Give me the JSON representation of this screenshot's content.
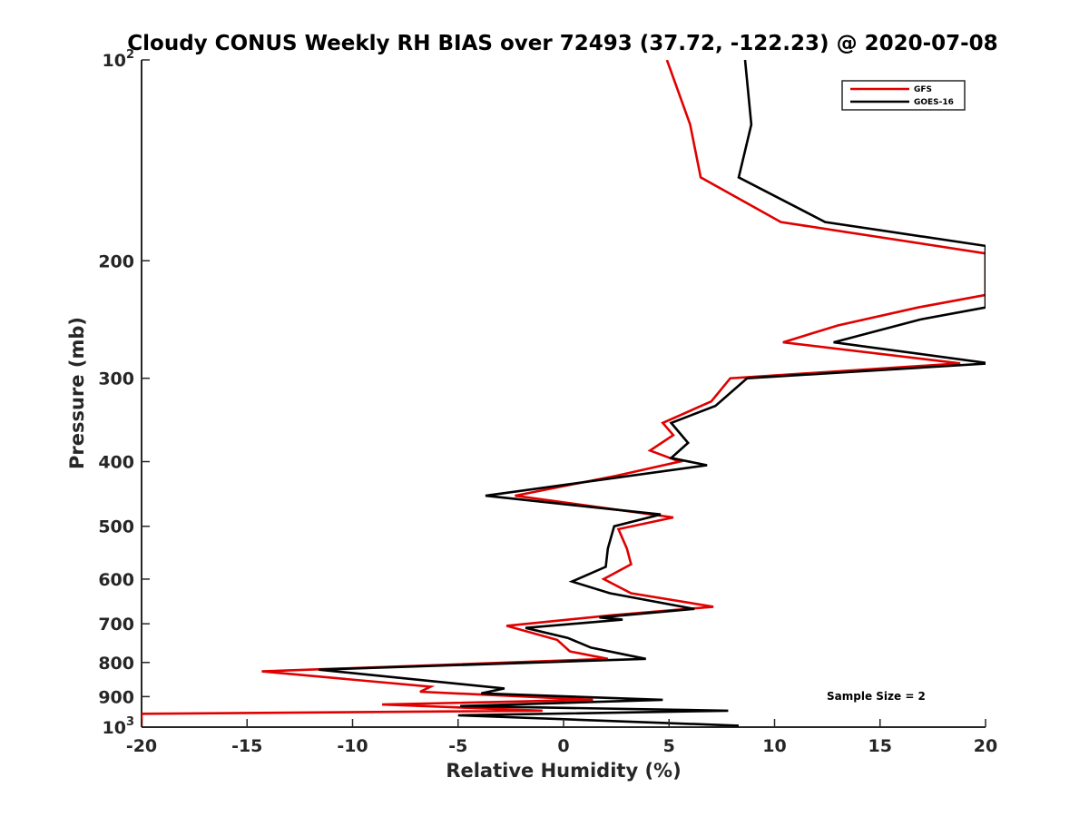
{
  "chart_data": {
    "type": "line",
    "title": "Cloudy CONUS Weekly RH BIAS over 72493 (37.72, -122.23) @ 2020-07-08",
    "xlabel": "Relative Humidity (%)",
    "ylabel": "Pressure (mb)",
    "xlim": [
      -20,
      20
    ],
    "ylim": [
      100,
      1000
    ],
    "yscale": "log",
    "y_reversed": true,
    "grid": false,
    "legend_position": "top-right",
    "x_ticks": [
      "-20",
      "-15",
      "-10",
      "-5",
      "0",
      "5",
      "10",
      "15",
      "20"
    ],
    "y_ticks": [
      {
        "value": 100,
        "base": "10",
        "exp": "2"
      },
      {
        "value": 200,
        "label": "200"
      },
      {
        "value": 300,
        "label": "300"
      },
      {
        "value": 400,
        "label": "400"
      },
      {
        "value": 500,
        "label": "500"
      },
      {
        "value": 600,
        "label": "600"
      },
      {
        "value": 700,
        "label": "700"
      },
      {
        "value": 800,
        "label": "800"
      },
      {
        "value": 900,
        "label": "900"
      },
      {
        "value": 1000,
        "base": "10",
        "exp": "3"
      }
    ],
    "annotation": "Sample Size = 2",
    "series": [
      {
        "name": "GFS",
        "color": "#e00000",
        "points": [
          [
            4.9,
            100
          ],
          [
            6.0,
            125
          ],
          [
            6.5,
            150
          ],
          [
            10.3,
            175
          ],
          [
            20.0,
            195
          ],
          [
            20.0,
            225
          ],
          [
            16.8,
            235
          ],
          [
            13.0,
            250
          ],
          [
            10.4,
            265
          ],
          [
            18.8,
            285
          ],
          [
            7.9,
            300
          ],
          [
            7.0,
            325
          ],
          [
            4.7,
            350
          ],
          [
            5.2,
            365
          ],
          [
            4.1,
            385
          ],
          [
            5.5,
            400
          ],
          [
            2.5,
            420
          ],
          [
            -2.3,
            450
          ],
          [
            5.2,
            485
          ],
          [
            2.6,
            505
          ],
          [
            3.0,
            540
          ],
          [
            3.2,
            570
          ],
          [
            1.9,
            600
          ],
          [
            3.2,
            630
          ],
          [
            7.1,
            660
          ],
          [
            2.2,
            680
          ],
          [
            -2.7,
            705
          ],
          [
            -0.3,
            740
          ],
          [
            0.3,
            770
          ],
          [
            2.1,
            790
          ],
          [
            -14.3,
            825
          ],
          [
            -6.3,
            870
          ],
          [
            -6.8,
            885
          ],
          [
            1.4,
            910
          ],
          [
            -8.6,
            925
          ],
          [
            -1.0,
            945
          ],
          [
            -20.0,
            955
          ],
          [
            -20.0,
            1000
          ]
        ]
      },
      {
        "name": "GOES-16",
        "color": "#000000",
        "points": [
          [
            8.6,
            100
          ],
          [
            8.9,
            125
          ],
          [
            8.3,
            150
          ],
          [
            12.4,
            175
          ],
          [
            20.0,
            190
          ],
          [
            20.0,
            235
          ],
          [
            16.9,
            245
          ],
          [
            12.8,
            265
          ],
          [
            20.2,
            285
          ],
          [
            8.7,
            300
          ],
          [
            7.2,
            330
          ],
          [
            5.1,
            350
          ],
          [
            5.9,
            375
          ],
          [
            5.1,
            395
          ],
          [
            6.8,
            405
          ],
          [
            -3.7,
            450
          ],
          [
            4.6,
            480
          ],
          [
            2.4,
            500
          ],
          [
            2.1,
            540
          ],
          [
            2.0,
            575
          ],
          [
            0.4,
            605
          ],
          [
            2.2,
            630
          ],
          [
            6.2,
            665
          ],
          [
            1.7,
            685
          ],
          [
            2.8,
            690
          ],
          [
            -1.8,
            710
          ],
          [
            0.2,
            735
          ],
          [
            1.3,
            760
          ],
          [
            3.9,
            790
          ],
          [
            -11.6,
            820
          ],
          [
            -2.8,
            875
          ],
          [
            -3.9,
            890
          ],
          [
            4.7,
            910
          ],
          [
            -4.9,
            930
          ],
          [
            7.8,
            945
          ],
          [
            -5.0,
            960
          ],
          [
            8.3,
            995
          ]
        ]
      }
    ]
  }
}
